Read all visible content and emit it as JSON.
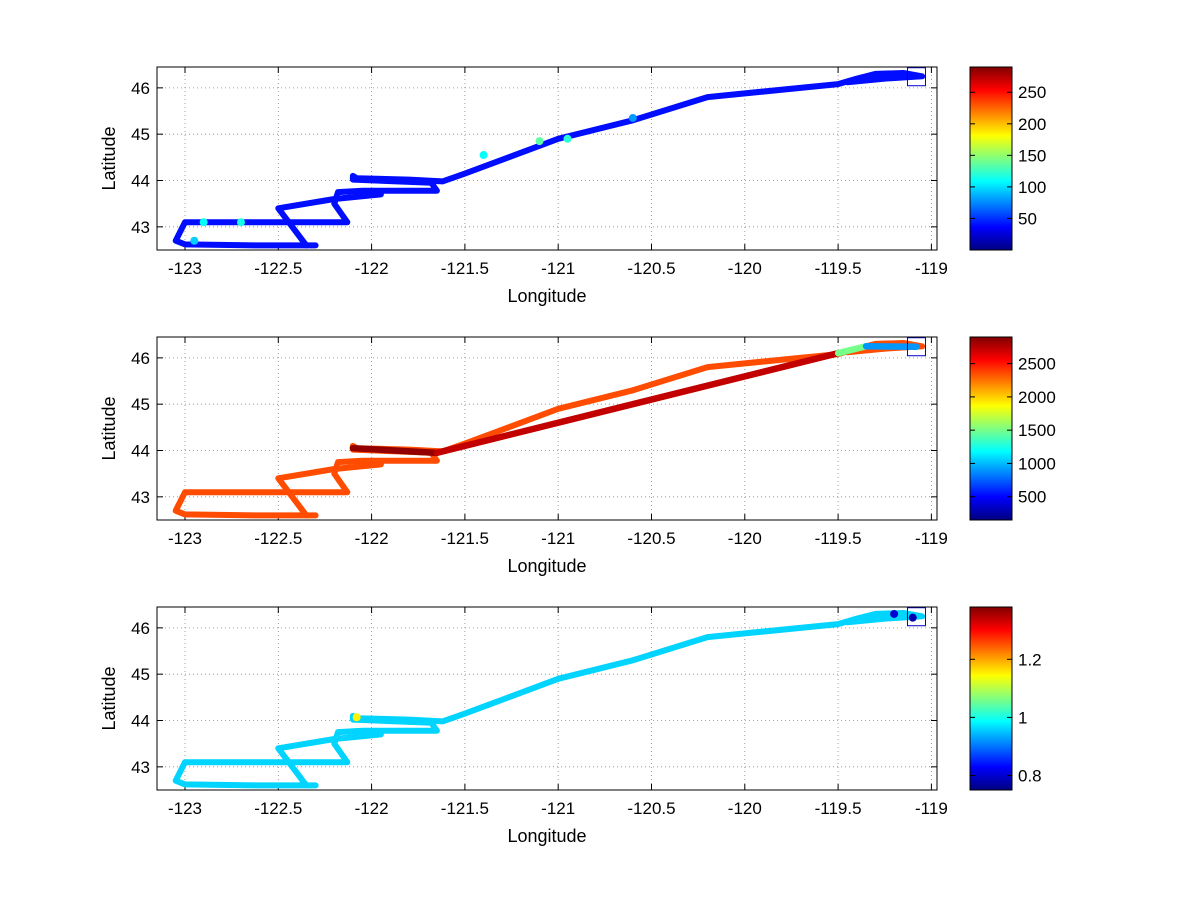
{
  "chart_data": [
    {
      "type": "scatter",
      "xlabel": "Longitude",
      "ylabel": "Latitude",
      "xlim": [
        -123.15,
        -118.97
      ],
      "ylim": [
        42.5,
        46.45
      ],
      "xticks": [
        "-123",
        "-122.5",
        "-122",
        "-121.5",
        "-121",
        "-120.5",
        "-120",
        "-119.5",
        "-119"
      ],
      "yticks": [
        "43",
        "44",
        "45",
        "46"
      ],
      "grid": true,
      "colormap": "jet",
      "colorbar": {
        "min": 0,
        "max": 290,
        "ticks": [
          50,
          100,
          150,
          200,
          250
        ],
        "tick_labels": [
          "50",
          "100",
          "150",
          "200",
          "250"
        ]
      },
      "marker_box": {
        "x": -119.08,
        "y": 46.24
      },
      "track_value": 40,
      "highlights": [
        {
          "x": -122.9,
          "y": 43.1,
          "value": 110
        },
        {
          "x": -122.7,
          "y": 43.1,
          "value": 115
        },
        {
          "x": -122.95,
          "y": 42.7,
          "value": 95
        },
        {
          "x": -121.1,
          "y": 44.85,
          "value": 135
        },
        {
          "x": -120.95,
          "y": 44.9,
          "value": 120
        },
        {
          "x": -121.4,
          "y": 44.55,
          "value": 110
        },
        {
          "x": -120.6,
          "y": 45.35,
          "value": 80
        }
      ]
    },
    {
      "type": "scatter",
      "xlabel": "Longitude",
      "ylabel": "Latitude",
      "xlim": [
        -123.15,
        -118.97
      ],
      "ylim": [
        42.5,
        46.45
      ],
      "xticks": [
        "-123",
        "-122.5",
        "-122",
        "-121.5",
        "-121",
        "-120.5",
        "-120",
        "-119.5",
        "-119"
      ],
      "yticks": [
        "43",
        "44",
        "45",
        "46"
      ],
      "grid": true,
      "colormap": "jet",
      "colorbar": {
        "min": 150,
        "max": 2900,
        "ticks": [
          500,
          1000,
          1500,
          2000,
          2500
        ],
        "tick_labels": [
          "500",
          "1000",
          "1500",
          "2000",
          "2500"
        ]
      },
      "marker_box": {
        "x": -119.08,
        "y": 46.24
      },
      "track_value": 2350,
      "segment_values": [
        {
          "from": [
            -122.1,
            44.05
          ],
          "to": [
            -121.65,
            43.95
          ],
          "value": 2850
        },
        {
          "from": [
            -121.65,
            43.95
          ],
          "to": [
            -119.5,
            46.1
          ],
          "value": 2720
        },
        {
          "from": [
            -119.5,
            46.1
          ],
          "to": [
            -119.35,
            46.25
          ],
          "value": 1500
        },
        {
          "from": [
            -119.35,
            46.25
          ],
          "to": [
            -119.08,
            46.24
          ],
          "value": 900
        }
      ]
    },
    {
      "type": "scatter",
      "xlabel": "Longitude",
      "ylabel": "Latitude",
      "xlim": [
        -123.15,
        -118.97
      ],
      "ylim": [
        42.5,
        46.45
      ],
      "xticks": [
        "-123",
        "-122.5",
        "-122",
        "-121.5",
        "-121",
        "-120.5",
        "-120",
        "-119.5",
        "-119"
      ],
      "yticks": [
        "43",
        "44",
        "45",
        "46"
      ],
      "grid": true,
      "colormap": "jet",
      "colorbar": {
        "min": 0.75,
        "max": 1.38,
        "ticks": [
          0.8,
          1,
          1.2
        ],
        "tick_labels": [
          "0.8",
          "1",
          "1.2"
        ]
      },
      "marker_box": {
        "x": -119.08,
        "y": 46.24
      },
      "track_value": 0.96,
      "highlights": [
        {
          "x": -122.08,
          "y": 44.07,
          "value": 1.15
        },
        {
          "x": -119.2,
          "y": 46.3,
          "value": 0.8
        },
        {
          "x": -119.1,
          "y": 46.22,
          "value": 0.78
        }
      ]
    }
  ],
  "track": [
    [
      -122.3,
      42.6
    ],
    [
      -122.6,
      42.6
    ],
    [
      -123.0,
      42.62
    ],
    [
      -123.05,
      42.7
    ],
    [
      -123.0,
      43.1
    ],
    [
      -122.6,
      43.1
    ],
    [
      -122.13,
      43.1
    ],
    [
      -122.2,
      43.5
    ],
    [
      -122.18,
      43.75
    ],
    [
      -122.05,
      43.78
    ],
    [
      -121.65,
      43.78
    ],
    [
      -121.68,
      43.95
    ],
    [
      -122.1,
      44.02
    ],
    [
      -122.1,
      44.1
    ],
    [
      -122.08,
      44.05
    ],
    [
      -121.8,
      44.02
    ],
    [
      -121.62,
      43.98
    ],
    [
      -121.5,
      44.15
    ],
    [
      -121.0,
      44.9
    ],
    [
      -120.6,
      45.3
    ],
    [
      -120.2,
      45.8
    ],
    [
      -119.5,
      46.08
    ],
    [
      -119.4,
      46.2
    ],
    [
      -119.3,
      46.3
    ],
    [
      -119.15,
      46.32
    ],
    [
      -119.05,
      46.25
    ],
    [
      -119.25,
      46.2
    ],
    [
      -119.45,
      46.12
    ]
  ],
  "track_branch": [
    [
      -122.35,
      42.6
    ],
    [
      -122.5,
      43.4
    ],
    [
      -122.2,
      43.6
    ],
    [
      -121.95,
      43.7
    ]
  ]
}
